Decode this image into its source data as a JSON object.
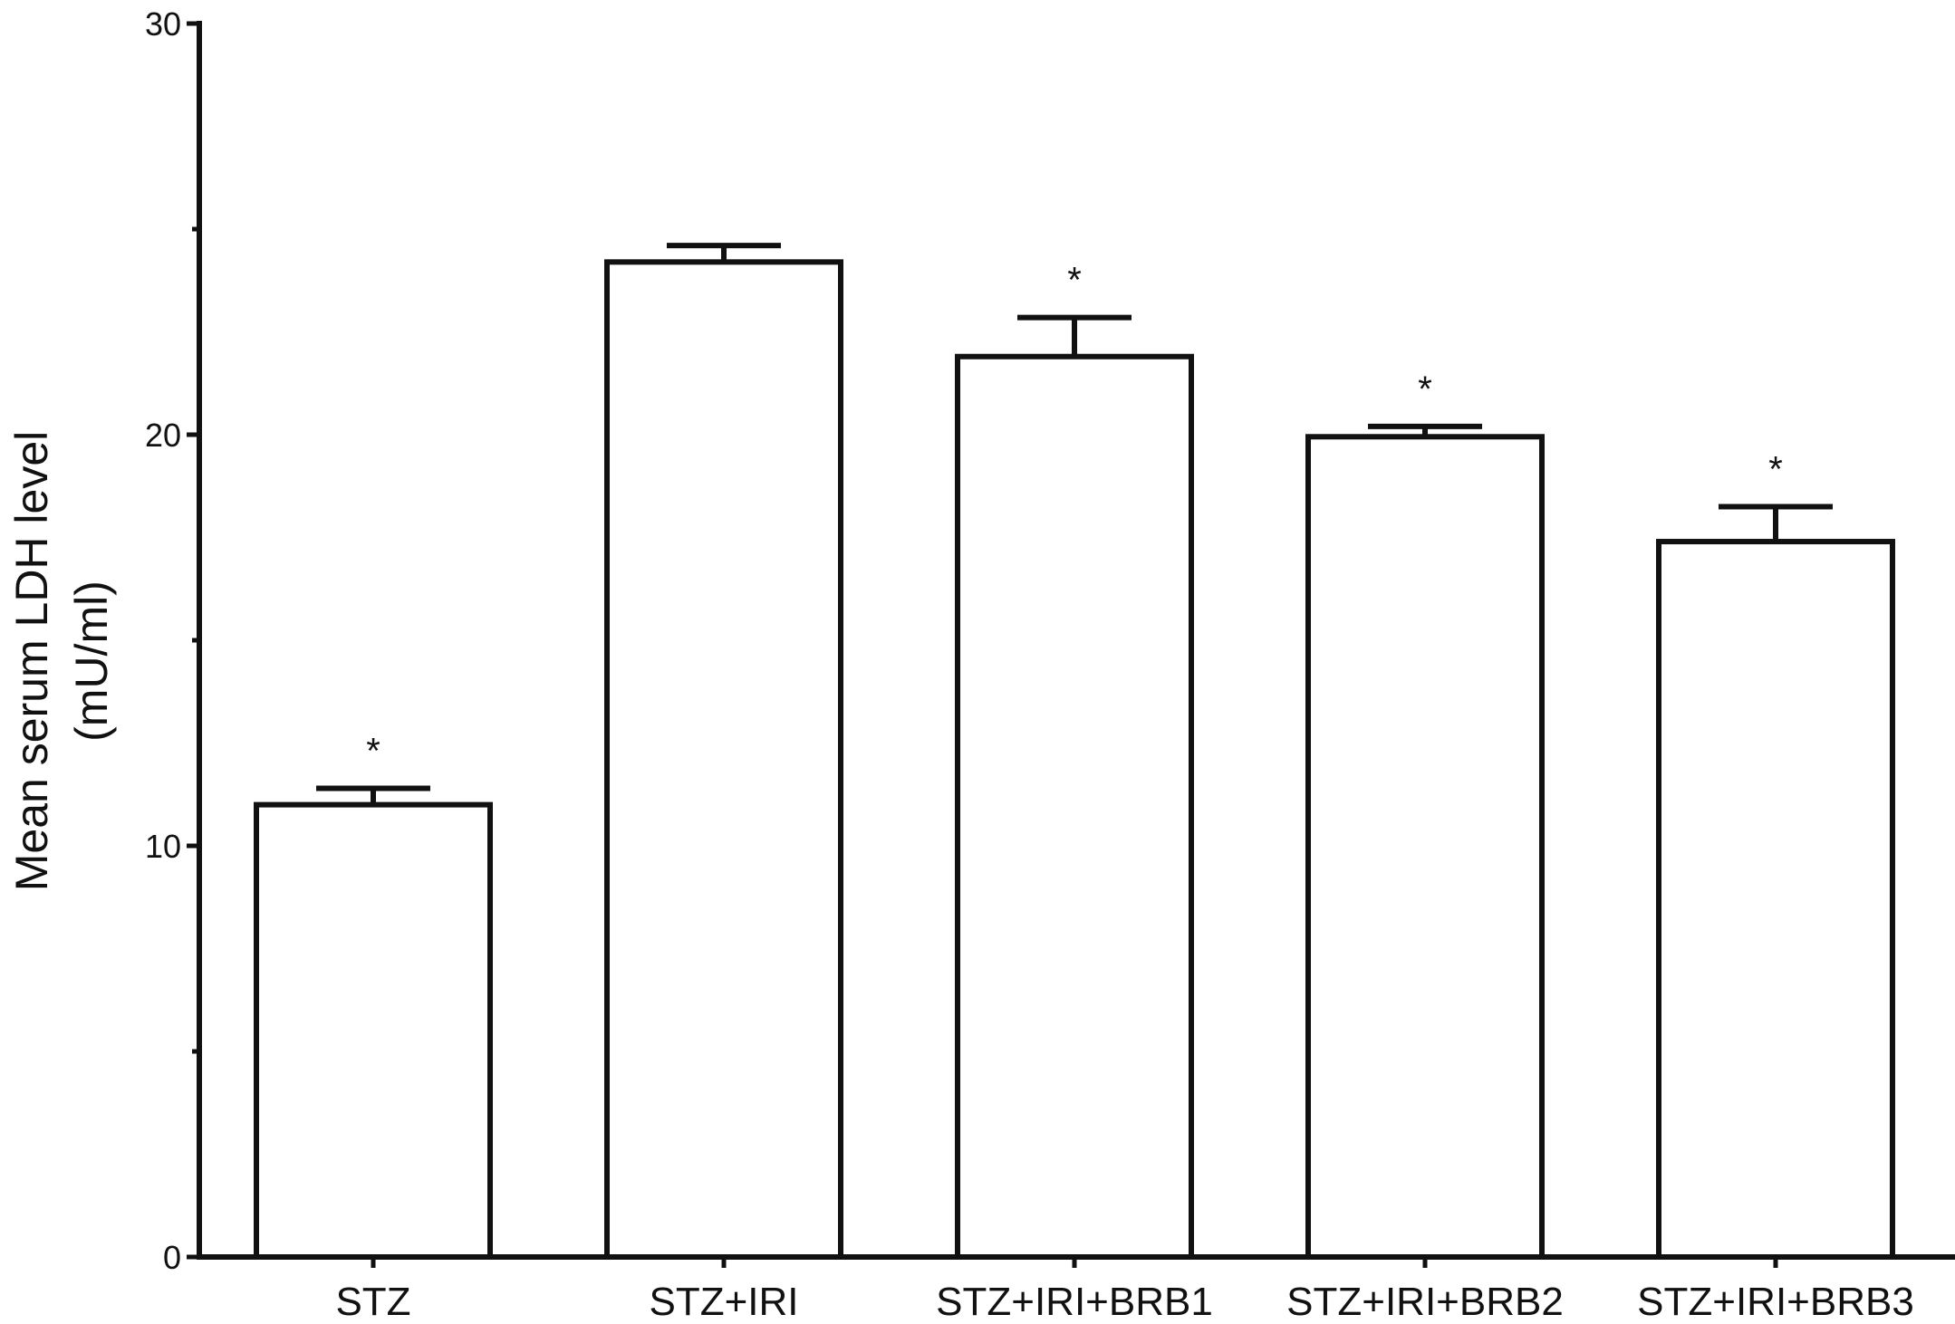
{
  "chart_data": {
    "type": "bar",
    "title": "",
    "xlabel": "",
    "ylabel": [
      "Mean serum LDH level",
      "(mU/ml)"
    ],
    "ylim": [
      0,
      30
    ],
    "yticks": [
      0,
      10,
      20,
      30
    ],
    "yminor_ticks": [
      5,
      15,
      25
    ],
    "grid": false,
    "legend": "none",
    "categories": [
      "STZ",
      "STZ+IRI",
      "STZ+IRI+BRB1",
      "STZ+IRI+BRB2",
      "STZ+IRI+BRB3"
    ],
    "series": [
      {
        "values": [
          11.0,
          24.2,
          21.9,
          19.95,
          17.4
        ],
        "errors": [
          0.4,
          0.4,
          0.95,
          0.25,
          0.85
        ],
        "significance": [
          "*",
          "",
          "*",
          "*",
          "*"
        ]
      }
    ],
    "colors": {
      "bar_fill": "#ffffff",
      "stroke": "#111111"
    }
  }
}
